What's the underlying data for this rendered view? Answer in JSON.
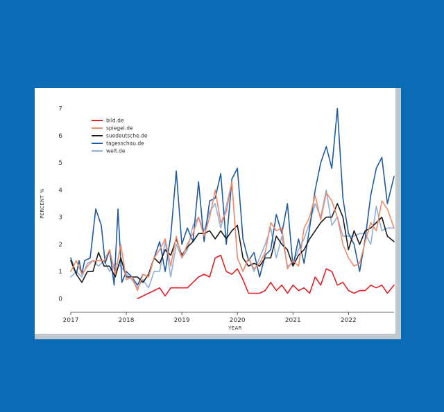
{
  "chart_data": {
    "type": "line",
    "title": "",
    "xlabel": "YEAR",
    "ylabel": "PERCENT %",
    "xlim": [
      2017.0,
      2022.82
    ],
    "ylim": [
      -0.5,
      7.5
    ],
    "grid": false,
    "legend_position": "top-left",
    "x_ticks": [
      {
        "value": 2017,
        "label": "2017"
      },
      {
        "value": 2018,
        "label": "2018"
      },
      {
        "value": 2019,
        "label": "2019"
      },
      {
        "value": 2020,
        "label": "2020"
      },
      {
        "value": 2021,
        "label": "2021"
      },
      {
        "value": 2022,
        "label": "2022"
      }
    ],
    "y_ticks": [
      {
        "value": 0,
        "label": "0"
      },
      {
        "value": 1,
        "label": "1"
      },
      {
        "value": 2,
        "label": "2"
      },
      {
        "value": 3,
        "label": "3"
      },
      {
        "value": 4,
        "label": "4"
      },
      {
        "value": 5,
        "label": "5"
      },
      {
        "value": 6,
        "label": "6"
      },
      {
        "value": 7,
        "label": "7"
      }
    ],
    "series": [
      {
        "name": "welt.de",
        "color": "#8eaedc",
        "points": [
          [
            2017.0,
            0.8
          ],
          [
            2017.1,
            1.0
          ],
          [
            2017.2,
            0.8
          ],
          [
            2017.3,
            1.3
          ],
          [
            2017.4,
            1.4
          ],
          [
            2017.5,
            1.2
          ],
          [
            2017.6,
            1.4
          ],
          [
            2017.7,
            1.0
          ],
          [
            2017.8,
            1.3
          ],
          [
            2017.9,
            1.2
          ],
          [
            2018.0,
            0.9
          ],
          [
            2018.1,
            0.7
          ],
          [
            2018.2,
            0.4
          ],
          [
            2018.3,
            0.7
          ],
          [
            2018.4,
            0.4
          ],
          [
            2018.5,
            1.0
          ],
          [
            2018.6,
            1.0
          ],
          [
            2018.7,
            2.1
          ],
          [
            2018.8,
            0.8
          ],
          [
            2018.9,
            2.0
          ],
          [
            2019.0,
            1.5
          ],
          [
            2019.1,
            1.8
          ],
          [
            2019.2,
            2.7
          ],
          [
            2019.3,
            3.0
          ],
          [
            2019.4,
            2.5
          ],
          [
            2019.5,
            3.2
          ],
          [
            2019.6,
            3.5
          ],
          [
            2019.7,
            2.6
          ],
          [
            2019.8,
            3.4
          ],
          [
            2019.9,
            4.3
          ],
          [
            2020.0,
            1.5
          ],
          [
            2020.1,
            1.0
          ],
          [
            2020.2,
            1.5
          ],
          [
            2020.3,
            1.0
          ],
          [
            2020.4,
            1.5
          ],
          [
            2020.5,
            2.0
          ],
          [
            2020.6,
            2.6
          ],
          [
            2020.7,
            1.5
          ],
          [
            2020.8,
            2.3
          ],
          [
            2020.9,
            1.2
          ],
          [
            2021.0,
            1.3
          ],
          [
            2021.1,
            1.8
          ],
          [
            2021.2,
            2.2
          ],
          [
            2021.3,
            2.8
          ],
          [
            2021.4,
            3.5
          ],
          [
            2021.5,
            3.0
          ],
          [
            2021.6,
            4.0
          ],
          [
            2021.7,
            2.7
          ],
          [
            2021.8,
            3.0
          ],
          [
            2021.9,
            2.3
          ],
          [
            2022.0,
            2.3
          ],
          [
            2022.1,
            2.3
          ],
          [
            2022.2,
            2.4
          ],
          [
            2022.3,
            2.4
          ],
          [
            2022.4,
            2.0
          ],
          [
            2022.5,
            3.4
          ],
          [
            2022.6,
            2.5
          ],
          [
            2022.7,
            2.6
          ],
          [
            2022.82,
            2.6
          ]
        ]
      },
      {
        "name": "tagesschau.de",
        "color": "#1f5a9e",
        "points": [
          [
            2017.0,
            1.5
          ],
          [
            2017.1,
            0.9
          ],
          [
            2017.15,
            1.4
          ],
          [
            2017.2,
            0.9
          ],
          [
            2017.25,
            1.4
          ],
          [
            2017.35,
            1.5
          ],
          [
            2017.45,
            3.3
          ],
          [
            2017.55,
            2.7
          ],
          [
            2017.62,
            1.3
          ],
          [
            2017.7,
            1.8
          ],
          [
            2017.78,
            0.5
          ],
          [
            2017.85,
            3.3
          ],
          [
            2017.92,
            0.6
          ],
          [
            2018.0,
            1.0
          ],
          [
            2018.1,
            0.8
          ],
          [
            2018.2,
            0.5
          ],
          [
            2018.3,
            0.9
          ],
          [
            2018.4,
            0.8
          ],
          [
            2018.5,
            1.5
          ],
          [
            2018.6,
            2.1
          ],
          [
            2018.7,
            1.0
          ],
          [
            2018.8,
            2.3
          ],
          [
            2018.9,
            4.7
          ],
          [
            2019.0,
            2.0
          ],
          [
            2019.1,
            2.6
          ],
          [
            2019.2,
            2.1
          ],
          [
            2019.3,
            4.3
          ],
          [
            2019.4,
            2.1
          ],
          [
            2019.5,
            3.6
          ],
          [
            2019.6,
            3.7
          ],
          [
            2019.7,
            4.6
          ],
          [
            2019.8,
            2.0
          ],
          [
            2019.9,
            4.4
          ],
          [
            2020.0,
            4.8
          ],
          [
            2020.1,
            2.2
          ],
          [
            2020.2,
            1.4
          ],
          [
            2020.3,
            1.7
          ],
          [
            2020.4,
            0.8
          ],
          [
            2020.5,
            1.6
          ],
          [
            2020.6,
            1.8
          ],
          [
            2020.7,
            3.1
          ],
          [
            2020.8,
            2.4
          ],
          [
            2020.9,
            3.5
          ],
          [
            2021.0,
            1.2
          ],
          [
            2021.1,
            2.2
          ],
          [
            2021.2,
            1.3
          ],
          [
            2021.3,
            2.6
          ],
          [
            2021.4,
            4.0
          ],
          [
            2021.5,
            5.0
          ],
          [
            2021.6,
            5.6
          ],
          [
            2021.7,
            4.8
          ],
          [
            2021.8,
            7.0
          ],
          [
            2021.9,
            3.7
          ],
          [
            2022.0,
            2.4
          ],
          [
            2022.1,
            2.0
          ],
          [
            2022.2,
            1.0
          ],
          [
            2022.3,
            2.2
          ],
          [
            2022.4,
            3.8
          ],
          [
            2022.5,
            4.8
          ],
          [
            2022.6,
            5.2
          ],
          [
            2022.7,
            3.5
          ],
          [
            2022.82,
            4.5
          ]
        ]
      },
      {
        "name": "suedeutsche.de",
        "color": "#1a1a1a",
        "points": [
          [
            2017.0,
            1.4
          ],
          [
            2017.1,
            0.9
          ],
          [
            2017.2,
            0.6
          ],
          [
            2017.3,
            1.0
          ],
          [
            2017.4,
            1.0
          ],
          [
            2017.5,
            1.7
          ],
          [
            2017.6,
            1.2
          ],
          [
            2017.7,
            1.2
          ],
          [
            2017.8,
            0.8
          ],
          [
            2017.9,
            1.5
          ],
          [
            2018.0,
            0.8
          ],
          [
            2018.1,
            0.8
          ],
          [
            2018.2,
            0.8
          ],
          [
            2018.3,
            0.6
          ],
          [
            2018.4,
            0.9
          ],
          [
            2018.5,
            1.5
          ],
          [
            2018.6,
            1.3
          ],
          [
            2018.7,
            1.8
          ],
          [
            2018.8,
            1.6
          ],
          [
            2018.9,
            2.2
          ],
          [
            2019.0,
            1.6
          ],
          [
            2019.1,
            1.9
          ],
          [
            2019.2,
            2.1
          ],
          [
            2019.3,
            2.4
          ],
          [
            2019.4,
            2.4
          ],
          [
            2019.5,
            2.5
          ],
          [
            2019.6,
            2.2
          ],
          [
            2019.7,
            2.5
          ],
          [
            2019.8,
            2.2
          ],
          [
            2019.9,
            2.5
          ],
          [
            2020.0,
            2.7
          ],
          [
            2020.1,
            1.5
          ],
          [
            2020.2,
            1.2
          ],
          [
            2020.3,
            1.3
          ],
          [
            2020.4,
            1.2
          ],
          [
            2020.5,
            1.5
          ],
          [
            2020.6,
            1.5
          ],
          [
            2020.7,
            2.3
          ],
          [
            2020.8,
            2.0
          ],
          [
            2020.9,
            1.8
          ],
          [
            2021.0,
            1.2
          ],
          [
            2021.1,
            1.6
          ],
          [
            2021.2,
            1.8
          ],
          [
            2021.3,
            2.2
          ],
          [
            2021.4,
            2.5
          ],
          [
            2021.5,
            2.8
          ],
          [
            2021.6,
            3.0
          ],
          [
            2021.7,
            3.0
          ],
          [
            2021.8,
            3.5
          ],
          [
            2021.9,
            3.0
          ],
          [
            2022.0,
            1.8
          ],
          [
            2022.1,
            2.5
          ],
          [
            2022.2,
            2.0
          ],
          [
            2022.3,
            2.5
          ],
          [
            2022.4,
            2.6
          ],
          [
            2022.5,
            2.8
          ],
          [
            2022.6,
            3.0
          ],
          [
            2022.7,
            2.3
          ],
          [
            2022.82,
            2.1
          ]
        ]
      },
      {
        "name": "spiegel.de",
        "color": "#f08a68",
        "points": [
          [
            2017.0,
            1.0
          ],
          [
            2017.1,
            1.4
          ],
          [
            2017.2,
            0.9
          ],
          [
            2017.3,
            1.2
          ],
          [
            2017.4,
            1.4
          ],
          [
            2017.5,
            1.4
          ],
          [
            2017.6,
            1.4
          ],
          [
            2017.7,
            1.8
          ],
          [
            2017.8,
            0.9
          ],
          [
            2017.9,
            2.0
          ],
          [
            2018.0,
            0.7
          ],
          [
            2018.1,
            0.8
          ],
          [
            2018.2,
            0.3
          ],
          [
            2018.3,
            0.9
          ],
          [
            2018.4,
            0.8
          ],
          [
            2018.5,
            1.5
          ],
          [
            2018.6,
            1.8
          ],
          [
            2018.7,
            2.2
          ],
          [
            2018.8,
            1.2
          ],
          [
            2018.9,
            2.3
          ],
          [
            2019.0,
            1.5
          ],
          [
            2019.1,
            2.0
          ],
          [
            2019.2,
            2.4
          ],
          [
            2019.3,
            3.0
          ],
          [
            2019.4,
            2.3
          ],
          [
            2019.5,
            3.0
          ],
          [
            2019.6,
            4.0
          ],
          [
            2019.7,
            2.8
          ],
          [
            2019.8,
            3.2
          ],
          [
            2019.9,
            4.3
          ],
          [
            2020.0,
            1.5
          ],
          [
            2020.1,
            1.0
          ],
          [
            2020.2,
            1.5
          ],
          [
            2020.3,
            1.1
          ],
          [
            2020.4,
            1.3
          ],
          [
            2020.5,
            1.7
          ],
          [
            2020.6,
            2.8
          ],
          [
            2020.7,
            2.5
          ],
          [
            2020.8,
            2.6
          ],
          [
            2020.9,
            1.1
          ],
          [
            2021.0,
            1.4
          ],
          [
            2021.1,
            1.2
          ],
          [
            2021.2,
            2.6
          ],
          [
            2021.3,
            3.0
          ],
          [
            2021.4,
            3.8
          ],
          [
            2021.5,
            2.9
          ],
          [
            2021.6,
            3.9
          ],
          [
            2021.7,
            3.6
          ],
          [
            2021.8,
            3.0
          ],
          [
            2021.9,
            2.0
          ],
          [
            2022.0,
            1.5
          ],
          [
            2022.1,
            1.2
          ],
          [
            2022.2,
            1.3
          ],
          [
            2022.3,
            2.1
          ],
          [
            2022.4,
            2.8
          ],
          [
            2022.5,
            2.5
          ],
          [
            2022.6,
            3.6
          ],
          [
            2022.7,
            3.3
          ],
          [
            2022.82,
            2.6
          ]
        ]
      },
      {
        "name": "bild.de",
        "color": "#e01f26",
        "points": [
          [
            2018.2,
            0.0
          ],
          [
            2018.3,
            0.1
          ],
          [
            2018.4,
            0.2
          ],
          [
            2018.5,
            0.3
          ],
          [
            2018.6,
            0.4
          ],
          [
            2018.7,
            0.1
          ],
          [
            2018.8,
            0.4
          ],
          [
            2018.9,
            0.4
          ],
          [
            2019.0,
            0.4
          ],
          [
            2019.1,
            0.4
          ],
          [
            2019.2,
            0.6
          ],
          [
            2019.3,
            0.8
          ],
          [
            2019.4,
            0.9
          ],
          [
            2019.5,
            0.8
          ],
          [
            2019.6,
            1.5
          ],
          [
            2019.7,
            1.6
          ],
          [
            2019.8,
            1.0
          ],
          [
            2019.9,
            0.9
          ],
          [
            2020.0,
            1.1
          ],
          [
            2020.1,
            0.7
          ],
          [
            2020.2,
            0.2
          ],
          [
            2020.3,
            0.2
          ],
          [
            2020.4,
            0.2
          ],
          [
            2020.5,
            0.3
          ],
          [
            2020.6,
            0.6
          ],
          [
            2020.7,
            0.3
          ],
          [
            2020.8,
            0.5
          ],
          [
            2020.9,
            0.2
          ],
          [
            2021.0,
            0.5
          ],
          [
            2021.1,
            0.3
          ],
          [
            2021.2,
            0.4
          ],
          [
            2021.3,
            0.2
          ],
          [
            2021.4,
            0.8
          ],
          [
            2021.5,
            0.5
          ],
          [
            2021.6,
            1.1
          ],
          [
            2021.7,
            1.0
          ],
          [
            2021.8,
            0.5
          ],
          [
            2021.9,
            0.6
          ],
          [
            2022.0,
            0.3
          ],
          [
            2022.1,
            0.2
          ],
          [
            2022.2,
            0.3
          ],
          [
            2022.3,
            0.3
          ],
          [
            2022.4,
            0.5
          ],
          [
            2022.5,
            0.4
          ],
          [
            2022.6,
            0.5
          ],
          [
            2022.7,
            0.2
          ],
          [
            2022.82,
            0.5
          ]
        ]
      }
    ],
    "legend": [
      {
        "label": "bild.de",
        "color": "#e01f26"
      },
      {
        "label": "spiegel.de",
        "color": "#f08a68"
      },
      {
        "label": "suedeutsche.de",
        "color": "#1a1a1a"
      },
      {
        "label": "tagesschau.de",
        "color": "#1f5a9e"
      },
      {
        "label": "welt.de",
        "color": "#8eaedc"
      }
    ]
  }
}
